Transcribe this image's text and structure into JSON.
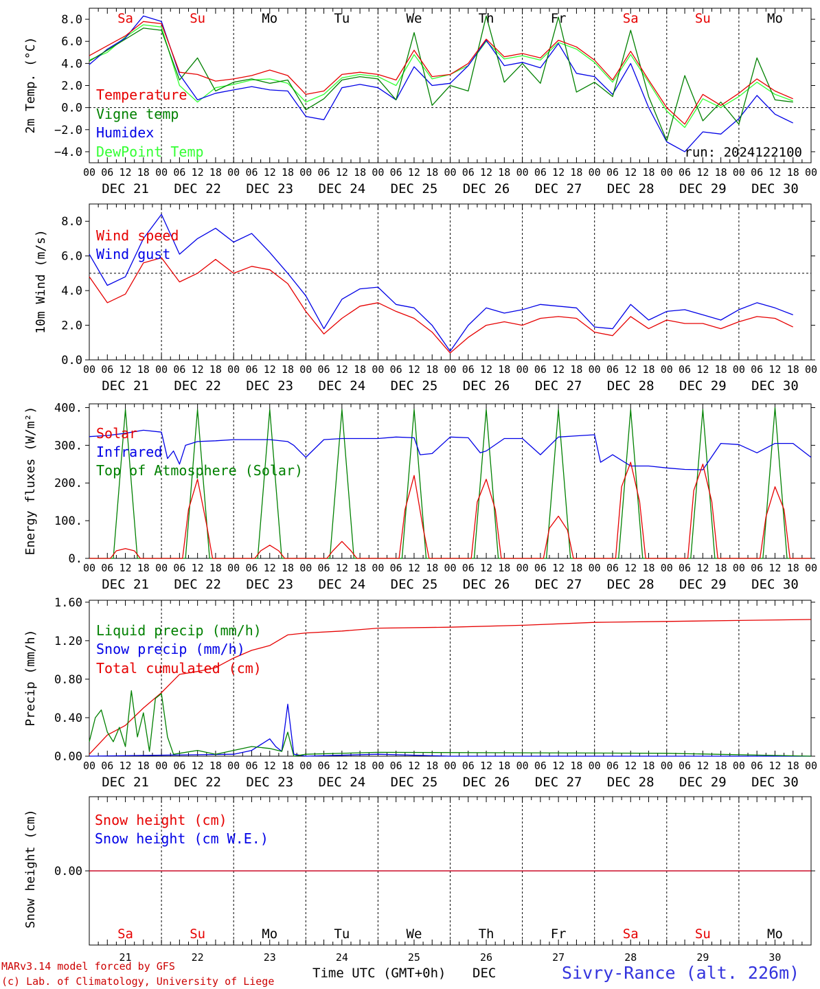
{
  "chart_data": [
    {
      "type": "line",
      "ylabel": "2m Temp. (°C)",
      "ylim": [
        -5,
        9
      ],
      "yticks": [
        8.0,
        6.0,
        4.0,
        2.0,
        0.0,
        -2.0,
        -4.0
      ],
      "x_unit": "hours from 2024-12-21 00 UTC",
      "run": "run: 2024122100",
      "series": [
        {
          "name": "Temperature",
          "color": "#e60000",
          "x": [
            0,
            6,
            12,
            18,
            24,
            30,
            36,
            42,
            48,
            54,
            60,
            66,
            72,
            78,
            84,
            90,
            96,
            102,
            108,
            114,
            120,
            126,
            132,
            138,
            144,
            150,
            156,
            162,
            168,
            174,
            180,
            186,
            192,
            198,
            204,
            210,
            216,
            222,
            228,
            234
          ],
          "values": [
            4.7,
            5.6,
            6.5,
            7.8,
            7.6,
            3.2,
            3.0,
            2.4,
            2.6,
            2.9,
            3.4,
            2.9,
            1.2,
            1.5,
            3.0,
            3.2,
            3.0,
            2.5,
            5.2,
            2.8,
            3.0,
            4.0,
            6.2,
            4.6,
            4.9,
            4.5,
            6.1,
            5.5,
            4.3,
            2.5,
            5.1,
            2.5,
            0.0,
            -1.5,
            1.2,
            0.2,
            1.3,
            2.6,
            1.5,
            0.8
          ]
        },
        {
          "name": "Vigne temp",
          "color": "#008000",
          "x": [
            0,
            6,
            12,
            18,
            24,
            30,
            36,
            42,
            48,
            54,
            60,
            66,
            72,
            78,
            84,
            90,
            96,
            102,
            108,
            114,
            120,
            126,
            132,
            138,
            144,
            150,
            156,
            162,
            168,
            174,
            180,
            186,
            192,
            198,
            204,
            210,
            216,
            222,
            228,
            234
          ],
          "values": [
            4.2,
            5.2,
            6.2,
            7.2,
            7.0,
            2.5,
            4.5,
            1.5,
            2.3,
            2.6,
            2.2,
            2.5,
            -0.2,
            0.8,
            2.5,
            2.8,
            2.6,
            0.7,
            6.8,
            0.2,
            2.0,
            1.5,
            8.3,
            2.3,
            4.0,
            2.2,
            8.2,
            1.4,
            2.3,
            1.0,
            7.0,
            1.0,
            -3.0,
            2.9,
            -1.2,
            0.5,
            -1.5,
            4.5,
            0.7,
            0.5
          ]
        },
        {
          "name": "Humidex",
          "color": "#0000e6",
          "x": [
            0,
            6,
            12,
            18,
            24,
            30,
            36,
            42,
            48,
            54,
            60,
            66,
            72,
            78,
            84,
            90,
            96,
            102,
            108,
            114,
            120,
            126,
            132,
            138,
            144,
            150,
            156,
            162,
            168,
            174,
            180,
            186,
            192,
            198,
            204,
            210,
            216,
            222,
            228,
            234
          ],
          "values": [
            3.9,
            5.3,
            6.3,
            8.3,
            7.8,
            3.0,
            0.7,
            1.3,
            1.6,
            1.9,
            1.6,
            1.5,
            -0.8,
            -1.1,
            1.8,
            2.1,
            1.8,
            0.7,
            3.7,
            2.0,
            2.2,
            3.8,
            6.1,
            3.8,
            4.1,
            3.6,
            5.8,
            3.1,
            2.8,
            1.2,
            4.0,
            0.0,
            -3.1,
            -4.0,
            -2.2,
            -2.4,
            -1.0,
            1.1,
            -0.6,
            -1.4
          ]
        },
        {
          "name": "DewPoint Temp",
          "color": "#33ff33",
          "x": [
            0,
            6,
            12,
            18,
            24,
            30,
            36,
            42,
            48,
            54,
            60,
            66,
            72,
            78,
            84,
            90,
            96,
            102,
            108,
            114,
            120,
            126,
            132,
            138,
            144,
            150,
            156,
            162,
            168,
            174,
            180,
            186,
            192,
            198,
            204,
            210,
            216,
            222,
            228,
            234
          ],
          "values": [
            4.3,
            5.0,
            6.4,
            7.5,
            7.3,
            2.0,
            0.5,
            1.8,
            2.1,
            2.5,
            2.6,
            2.2,
            0.5,
            1.2,
            2.7,
            3.0,
            2.8,
            2.0,
            4.8,
            2.6,
            3.0,
            3.8,
            6.0,
            4.4,
            4.7,
            4.3,
            5.9,
            5.3,
            4.1,
            2.3,
            4.8,
            2.3,
            -0.3,
            -1.8,
            0.8,
            0.0,
            1.0,
            2.3,
            1.2,
            0.6
          ]
        }
      ]
    },
    {
      "type": "line",
      "ylabel": "10m Wind (m/s)",
      "ylim": [
        0,
        9
      ],
      "yticks": [
        8.0,
        6.0,
        4.0,
        2.0,
        0.0
      ],
      "series": [
        {
          "name": "Wind speed",
          "color": "#e60000",
          "x": [
            0,
            6,
            12,
            18,
            24,
            30,
            36,
            42,
            48,
            54,
            60,
            66,
            72,
            78,
            84,
            90,
            96,
            102,
            108,
            114,
            120,
            126,
            132,
            138,
            144,
            150,
            156,
            162,
            168,
            174,
            180,
            186,
            192,
            198,
            204,
            210,
            216,
            222,
            228,
            234
          ],
          "values": [
            4.8,
            3.3,
            3.8,
            5.6,
            5.9,
            4.5,
            5.0,
            5.8,
            5.0,
            5.4,
            5.2,
            4.4,
            2.8,
            1.5,
            2.4,
            3.1,
            3.3,
            2.8,
            2.4,
            1.6,
            0.4,
            1.3,
            2.0,
            2.2,
            2.0,
            2.4,
            2.5,
            2.4,
            1.6,
            1.4,
            2.5,
            1.8,
            2.3,
            2.1,
            2.1,
            1.8,
            2.2,
            2.5,
            2.4,
            1.9
          ]
        },
        {
          "name": "Wind gust",
          "color": "#0000e6",
          "x": [
            0,
            6,
            12,
            18,
            24,
            30,
            36,
            42,
            48,
            54,
            60,
            66,
            72,
            78,
            84,
            90,
            96,
            102,
            108,
            114,
            120,
            126,
            132,
            138,
            144,
            150,
            156,
            162,
            168,
            174,
            180,
            186,
            192,
            198,
            204,
            210,
            216,
            222,
            228,
            234
          ],
          "values": [
            6.1,
            4.3,
            4.8,
            7.0,
            8.4,
            6.1,
            7.0,
            7.6,
            6.8,
            7.3,
            6.2,
            5.0,
            3.7,
            1.8,
            3.5,
            4.1,
            4.2,
            3.2,
            3.0,
            2.0,
            0.5,
            2.0,
            3.0,
            2.7,
            2.9,
            3.2,
            3.1,
            3.0,
            1.9,
            1.8,
            3.2,
            2.3,
            2.8,
            2.9,
            2.6,
            2.3,
            2.9,
            3.3,
            3.0,
            2.6
          ]
        }
      ],
      "reference_line": 5.0
    },
    {
      "type": "line",
      "ylabel": "Energy fluxes (W/m²)",
      "ylim": [
        0,
        400
      ],
      "yticks": [
        400,
        300,
        200,
        100,
        0
      ],
      "ytick_labels": [
        "400.",
        "300.",
        "200.",
        "100.",
        "0."
      ],
      "series": [
        {
          "name": "Solar",
          "color": "#e60000",
          "x": [
            0,
            7,
            9,
            12,
            15,
            17,
            24,
            31,
            33,
            36,
            39,
            41,
            48,
            55,
            57,
            60,
            63,
            65,
            72,
            79,
            81,
            84,
            87,
            89,
            96,
            103,
            105,
            108,
            111,
            113,
            120,
            127,
            129,
            132,
            135,
            137,
            144,
            151,
            153,
            156,
            159,
            161,
            168,
            175,
            177,
            180,
            183,
            185,
            192,
            199,
            201,
            204,
            207,
            209,
            216,
            223,
            225,
            228,
            231,
            233,
            240
          ],
          "values": [
            0,
            0,
            20,
            26,
            20,
            0,
            0,
            0,
            130,
            210,
            90,
            0,
            0,
            0,
            20,
            35,
            20,
            0,
            0,
            0,
            20,
            45,
            20,
            0,
            0,
            0,
            130,
            220,
            80,
            0,
            0,
            0,
            150,
            210,
            130,
            0,
            0,
            0,
            80,
            112,
            75,
            0,
            0,
            0,
            190,
            255,
            150,
            0,
            0,
            0,
            180,
            250,
            150,
            0,
            0,
            0,
            110,
            190,
            130,
            0,
            0
          ]
        },
        {
          "name": "Infrared",
          "color": "#0000e6",
          "x": [
            0,
            6,
            12,
            18,
            24,
            26,
            28,
            30,
            32,
            36,
            42,
            48,
            54,
            60,
            66,
            68,
            72,
            78,
            84,
            90,
            96,
            102,
            108,
            110,
            114,
            120,
            126,
            130,
            132,
            138,
            144,
            150,
            156,
            162,
            168,
            170,
            174,
            180,
            186,
            192,
            198,
            204,
            210,
            216,
            222,
            228,
            234,
            240
          ],
          "values": [
            323,
            326,
            332,
            340,
            335,
            265,
            285,
            250,
            300,
            310,
            312,
            315,
            315,
            315,
            310,
            300,
            268,
            315,
            318,
            318,
            318,
            322,
            320,
            275,
            278,
            322,
            320,
            280,
            285,
            318,
            318,
            275,
            322,
            325,
            328,
            255,
            275,
            245,
            245,
            240,
            236,
            235,
            305,
            302,
            280,
            305,
            305,
            268
          ]
        },
        {
          "name": "Top of Atmosphere (Solar)",
          "color": "#008000",
          "x": [
            0,
            8,
            12,
            16,
            24,
            32,
            36,
            40,
            48,
            56,
            60,
            64,
            72,
            80,
            84,
            88,
            96,
            104,
            108,
            112,
            120,
            128,
            132,
            136,
            144,
            152,
            156,
            160,
            168,
            176,
            180,
            184,
            192,
            200,
            204,
            208,
            216,
            224,
            228,
            232,
            240
          ],
          "values": [
            0,
            0,
            395,
            0,
            0,
            0,
            395,
            0,
            0,
            0,
            395,
            0,
            0,
            0,
            395,
            0,
            0,
            0,
            395,
            0,
            0,
            0,
            395,
            0,
            0,
            0,
            395,
            0,
            0,
            0,
            395,
            0,
            0,
            0,
            395,
            0,
            0,
            0,
            400,
            0,
            0
          ]
        }
      ]
    },
    {
      "type": "line",
      "ylabel": "Precip (mm/h)",
      "ylim": [
        0,
        1.6
      ],
      "yticks": [
        1.6,
        1.2,
        0.8,
        0.4,
        0.0
      ],
      "series": [
        {
          "name": "Liquid precip (mm/h)",
          "color": "#008000",
          "x": [
            0,
            2,
            4,
            6,
            8,
            10,
            12,
            14,
            16,
            18,
            20,
            22,
            24,
            26,
            28,
            30,
            36,
            42,
            48,
            54,
            60,
            64,
            66,
            68,
            72,
            96,
            192,
            240
          ],
          "values": [
            0.15,
            0.4,
            0.48,
            0.25,
            0.15,
            0.3,
            0.1,
            0.68,
            0.2,
            0.45,
            0.05,
            0.6,
            0.65,
            0.2,
            0.02,
            0.03,
            0.06,
            0.02,
            0.06,
            0.1,
            0.08,
            0.05,
            0.25,
            0.0,
            0.02,
            0.04,
            0.03,
            0.0
          ]
        },
        {
          "name": "Snow precip (mm/h)",
          "color": "#0000e6",
          "x": [
            0,
            48,
            54,
            60,
            62,
            64,
            66,
            68,
            72,
            96,
            120,
            240
          ],
          "values": [
            0,
            0.02,
            0.06,
            0.18,
            0.1,
            0.05,
            0.54,
            0.02,
            0,
            0.02,
            0,
            0
          ]
        },
        {
          "name": "Total cumulated (cm)",
          "color": "#e60000",
          "x": [
            0,
            6,
            12,
            18,
            24,
            30,
            36,
            42,
            48,
            54,
            60,
            66,
            72,
            84,
            96,
            120,
            144,
            168,
            192,
            216,
            240
          ],
          "values": [
            0.02,
            0.22,
            0.32,
            0.5,
            0.66,
            0.85,
            0.88,
            0.92,
            1.02,
            1.1,
            1.15,
            1.26,
            1.28,
            1.3,
            1.33,
            1.34,
            1.36,
            1.39,
            1.4,
            1.41,
            1.42
          ]
        }
      ]
    },
    {
      "type": "line",
      "ylabel": "Snow height (cm)",
      "yticks": [
        0.0
      ],
      "series": [
        {
          "name": "Snow height (cm)",
          "color": "#e60000",
          "x": [
            0,
            240
          ],
          "values": [
            0,
            0
          ]
        },
        {
          "name": "Snow height (cm W.E.)",
          "color": "#0000e6",
          "x": [
            0,
            240
          ],
          "values": [
            0,
            0
          ]
        }
      ]
    }
  ],
  "days": [
    {
      "date": "DEC 21",
      "num": "21",
      "wd": "Sa",
      "weekend": true
    },
    {
      "date": "DEC 22",
      "num": "22",
      "wd": "Su",
      "weekend": true
    },
    {
      "date": "DEC 23",
      "num": "23",
      "wd": "Mo",
      "weekend": false
    },
    {
      "date": "DEC 24",
      "num": "24",
      "wd": "Tu",
      "weekend": false
    },
    {
      "date": "DEC 25",
      "num": "25",
      "wd": "We",
      "weekend": false
    },
    {
      "date": "DEC 26",
      "num": "26",
      "wd": "Th",
      "weekend": false
    },
    {
      "date": "DEC 27",
      "num": "27",
      "wd": "Fr",
      "weekend": false
    },
    {
      "date": "DEC 28",
      "num": "28",
      "wd": "Sa",
      "weekend": true
    },
    {
      "date": "DEC 29",
      "num": "29",
      "wd": "Su",
      "weekend": true
    },
    {
      "date": "DEC 30",
      "num": "30",
      "wd": "Mo",
      "weekend": false
    }
  ],
  "hour_labels": [
    "00",
    "06",
    "12",
    "18"
  ],
  "colors": {
    "weekend": "#e60000",
    "weekday": "#000000",
    "station": "#3333dd",
    "credit": "#cc0000"
  },
  "footer": {
    "credit_line1": "MARv3.14 model forced by GFS",
    "credit_line2": "(c) Lab. of Climatology, University of Liege",
    "xlabel": "Time UTC (GMT+0h)",
    "month": "DEC",
    "station": "Sivry-Rance (alt. 226m)"
  }
}
